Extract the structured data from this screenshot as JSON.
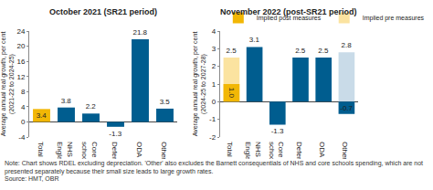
{
  "note": "Note: Chart shows RDEL excluding depreciation. 'Other' also excludes the Barnett consequentials of NHS and core schools spending, which are not presented separately because their small size leads to large growth rates.",
  "source": "Source: HMT, OBR",
  "chart_data": [
    {
      "type": "bar",
      "title": "October 2021 (SR21 period)",
      "y_label": "Average annual real growth, per cent (2021-22 to 2024-25)",
      "categories": [
        "Total",
        "NHS England",
        "Core schools",
        "Defence",
        "ODA",
        "Other"
      ],
      "values": [
        3.4,
        3.8,
        2.2,
        -1.3,
        21.8,
        3.5
      ],
      "colors": [
        "#f2b705",
        "#005d8f",
        "#005d8f",
        "#005d8f",
        "#005d8f",
        "#005d8f"
      ],
      "ylim": [
        -4,
        24
      ],
      "yticks": [
        -4,
        0,
        4,
        8,
        12,
        16,
        20,
        24
      ],
      "grid": false,
      "data_labels": true
    },
    {
      "type": "bar",
      "title": "November 2022 (post-SR21 period)",
      "y_label": "Average annual real growth, per cent (2024-25 to 2027-28)",
      "categories": [
        "Total",
        "NHS England",
        "Core schools",
        "Defence",
        "ODA",
        "Other"
      ],
      "series": [
        {
          "name": "Implied post measures",
          "colors": [
            "#f2b705",
            "#005d8f",
            "#005d8f",
            "#005d8f",
            "#005d8f",
            "#005d8f"
          ],
          "values": [
            1.0,
            3.1,
            -1.3,
            2.5,
            2.5,
            -0.7
          ],
          "value_labels": [
            "1.0",
            "3.1",
            "-1.3",
            "2.5",
            "2.5",
            "-0.7"
          ]
        },
        {
          "name": "Implied pre measures",
          "colors": [
            "#fbe3a0",
            "#c9dbe8",
            "#c9dbe8",
            "#c9dbe8",
            "#c9dbe8",
            "#c9dbe8"
          ],
          "values": [
            2.5,
            null,
            null,
            null,
            null,
            2.8
          ],
          "value_labels": [
            "2.5",
            null,
            null,
            null,
            null,
            "2.8"
          ]
        }
      ],
      "ylim": [
        -2,
        4
      ],
      "yticks": [
        -2,
        -1,
        0,
        1,
        2,
        3,
        4
      ],
      "grid": false,
      "data_labels": true,
      "legend": "top"
    }
  ]
}
